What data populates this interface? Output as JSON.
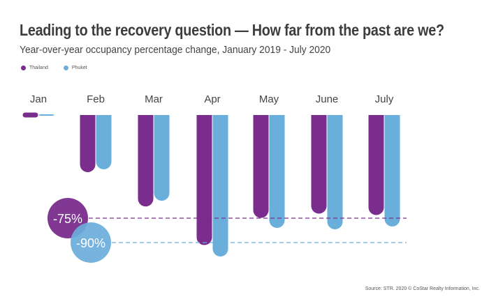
{
  "title": "Leading to the recovery question — How far from the past are we?",
  "subtitle": "Year-over-year occupancy percentage change, January 2019 - July 2020",
  "source": "Source: STR. 2020 © CoStar Realty Information, Inc.",
  "colors": {
    "thailand": "#7a2d8c",
    "phuket": "#6aaedb"
  },
  "chart_data": {
    "type": "bar",
    "title": "Leading to the recovery question — How far from the past are we?",
    "subtitle": "Year-over-year occupancy percentage change, January 2019 - July 2020",
    "categories": [
      "Jan",
      "Feb",
      "Mar",
      "Apr",
      "May",
      "June",
      "July"
    ],
    "series": [
      {
        "name": "Thailand",
        "values": [
          -3,
          -40,
          -64,
          -91,
          -72,
          -69,
          -70
        ]
      },
      {
        "name": "Phuket",
        "values": [
          -1,
          -38,
          -60,
          -99,
          -79,
          -80,
          -78
        ]
      }
    ],
    "reference_lines": [
      {
        "label": "-75%",
        "value": -75,
        "series": "Thailand"
      },
      {
        "label": "-90%",
        "value": -90,
        "series": "Phuket"
      }
    ],
    "ylim": [
      -100,
      0
    ],
    "xlabel": "",
    "ylabel": "",
    "legend": "top-left"
  }
}
